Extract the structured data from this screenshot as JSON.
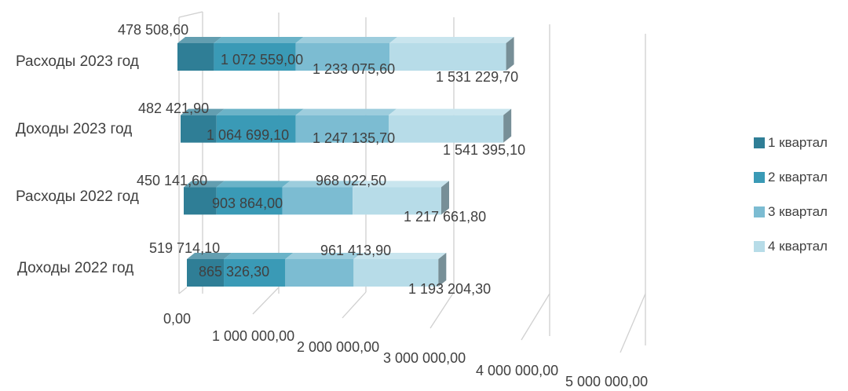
{
  "chart_data": {
    "type": "bar",
    "orientation": "horizontal",
    "stacked": true,
    "three_d": true,
    "categories": [
      "Доходы 2022 год",
      "Расходы 2022 год",
      "Доходы 2023 год",
      "Расходы 2023 год"
    ],
    "category_order": "bottom-to-top",
    "series": [
      {
        "name": "1 квартал",
        "values": [
          519714.1,
          450141.6,
          482421.9,
          478508.6
        ],
        "labels": [
          "519 714,10",
          "450 141,60",
          "482 421,90",
          "478 508,60"
        ],
        "color": "#2f7e96"
      },
      {
        "name": "2 квартал",
        "values": [
          865326.3,
          903864.0,
          1064699.1,
          1072559.0
        ],
        "labels": [
          "865 326,30",
          "903 864,00",
          "1 064 699,10",
          "1 072 559,00"
        ],
        "color": "#3a9ab6"
      },
      {
        "name": "3 квартал",
        "values": [
          961413.9,
          968022.5,
          1247135.7,
          1233075.6
        ],
        "labels": [
          "961 413,90",
          "968 022,50",
          "1 247 135,70",
          "1 233 075,60"
        ],
        "color": "#7cbcd2"
      },
      {
        "name": "4 квартал",
        "values": [
          1193204.3,
          1217661.8,
          1541395.1,
          1531229.7
        ],
        "labels": [
          "1 193 204,30",
          "1 217 661,80",
          "1 541 395,10",
          "1 531 229,70"
        ],
        "color": "#b7dce8"
      }
    ],
    "x_ticks": [
      0,
      1000000,
      2000000,
      3000000,
      4000000,
      5000000
    ],
    "x_tick_labels": [
      "0,00",
      "1 000 000,00",
      "2 000 000,00",
      "3 000 000,00",
      "4 000 000,00",
      "5 000 000,00"
    ],
    "xlim": [
      0,
      5000000
    ],
    "grid": true,
    "legend_position": "right"
  }
}
